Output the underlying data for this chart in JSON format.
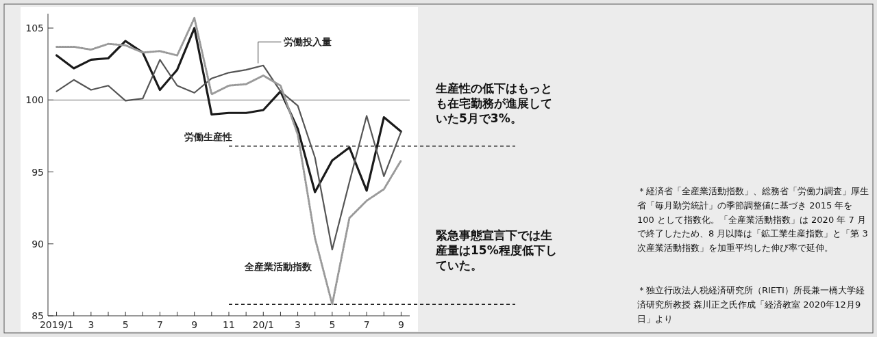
{
  "chart_data": {
    "type": "line",
    "categories": [
      "2019/1",
      null,
      "3",
      null,
      "5",
      null,
      "7",
      null,
      "9",
      null,
      "11",
      null,
      "20/1",
      null,
      "3",
      null,
      "5",
      null,
      "7",
      null,
      "9"
    ],
    "series": [
      {
        "name": "労働生産性",
        "color": "#1a1a1a",
        "line_style": "solid",
        "values": [
          103.1,
          102.2,
          102.8,
          102.9,
          104.1,
          103.3,
          100.7,
          102.1,
          105.0,
          99.0,
          99.1,
          99.1,
          99.3,
          100.6,
          98.0,
          93.6,
          95.8,
          96.7,
          93.7,
          98.8,
          97.8
        ]
      },
      {
        "name": "労働投入量",
        "color": "#555555",
        "line_style": "solid",
        "values": [
          100.6,
          101.4,
          100.7,
          101.0,
          99.95,
          100.1,
          102.8,
          101.0,
          100.5,
          101.5,
          101.9,
          102.1,
          102.4,
          100.6,
          99.6,
          96.0,
          89.6,
          94.3,
          98.9,
          94.7,
          97.8
        ]
      },
      {
        "name": "全産業活動指数",
        "color": "#9a9a9a",
        "line_style": "dotted",
        "values": [
          103.7,
          103.7,
          103.5,
          103.9,
          103.8,
          103.3,
          103.4,
          103.1,
          105.7,
          100.4,
          101.0,
          101.1,
          101.7,
          101.0,
          97.6,
          90.4,
          85.8,
          91.8,
          93.0,
          93.8,
          95.8
        ]
      }
    ],
    "ylim": [
      85,
      106
    ],
    "yticks": [
      85,
      90,
      95,
      100,
      105
    ],
    "ref_lines": [
      {
        "axis": "y",
        "value": 100,
        "color": "#777777",
        "line_style": "solid"
      },
      {
        "axis": "y",
        "value": 96.8,
        "color": "#222222",
        "line_style": "dashed"
      },
      {
        "axis": "y",
        "value": 85.8,
        "color": "#222222",
        "line_style": "dashed"
      }
    ],
    "legend": false,
    "grid": false,
    "annotations": [
      "生産性の低下はもっとも在宅勤務が進展していた5月で3%。",
      "緊急事態宣言下では生産量は15%程度低下していた。",
      "＊経済省「全産業活動指数」、総務省「労働力調査」厚生省「毎月勤労統計」の季節調整値に基づき 2015 年を 100 として指数化。「全産業活動指数」は 2020 年 7 月で終了したため、8 月以降は「鉱工業生産指数」と「第 3 次産業活動指数」を加重平均した伸び率で延伸。",
      "＊独立行政法人税経済研究所（RIETI）所長兼一橋大学経済研究所教授 森川正之氏作成「経済教室 2020年12月9日」より"
    ]
  }
}
